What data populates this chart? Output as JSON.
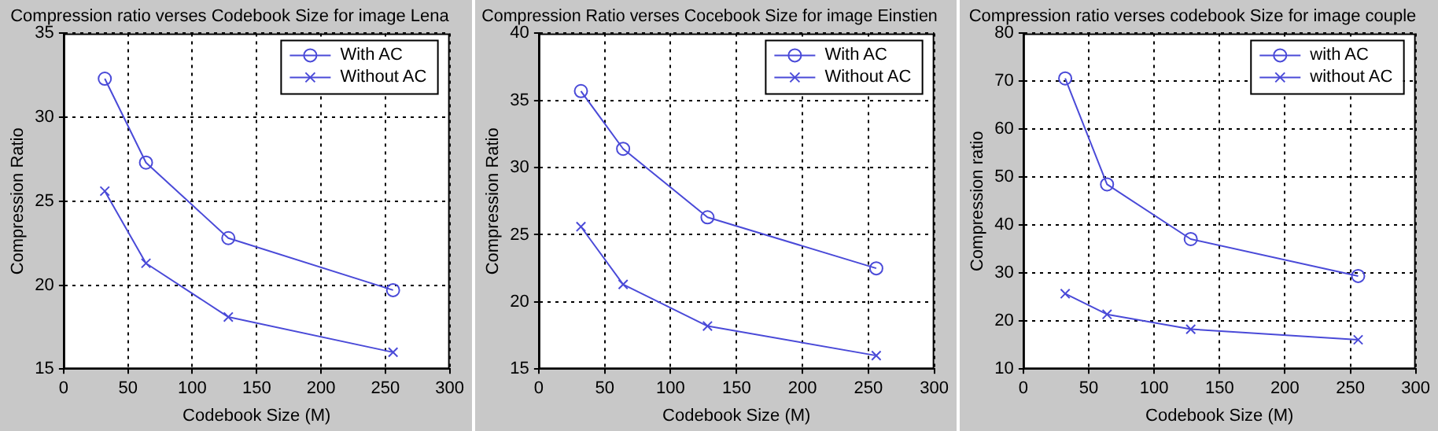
{
  "chart_data": [
    {
      "type": "line",
      "title": "Compression ratio verses Codebook Size for image Lena",
      "xlabel": "Codebook Size (M)",
      "ylabel": "Compression Ratio",
      "x": [
        32,
        64,
        128,
        256
      ],
      "xlim": [
        0,
        300
      ],
      "xticks": [
        0,
        50,
        100,
        150,
        200,
        250,
        300
      ],
      "ylim": [
        15,
        35
      ],
      "yticks": [
        15,
        20,
        25,
        30,
        35
      ],
      "grid": true,
      "legend": "top right",
      "line_style": "solid",
      "series": [
        {
          "name": "With AC",
          "color": "#4a4ad8",
          "marker": "circle",
          "values": [
            32.3,
            27.3,
            22.8,
            19.7
          ]
        },
        {
          "name": "Without AC",
          "color": "#4a4ad8",
          "marker": "cross",
          "values": [
            25.6,
            21.3,
            18.1,
            16.0
          ]
        }
      ]
    },
    {
      "type": "line",
      "title": "Compression Ratio verses Cocebook Size for image Einstien",
      "xlabel": "Codebook Size (M)",
      "ylabel": "Compression Ratio",
      "x": [
        32,
        64,
        128,
        256
      ],
      "xlim": [
        0,
        300
      ],
      "xticks": [
        0,
        50,
        100,
        150,
        200,
        250,
        300
      ],
      "ylim": [
        15,
        40
      ],
      "yticks": [
        15,
        20,
        25,
        30,
        35,
        40
      ],
      "grid": true,
      "legend": "top right",
      "line_style": "solid",
      "series": [
        {
          "name": "With AC",
          "color": "#4a4ad8",
          "marker": "circle",
          "values": [
            35.7,
            31.4,
            26.3,
            22.5
          ]
        },
        {
          "name": "Without AC",
          "color": "#4a4ad8",
          "marker": "cross",
          "values": [
            25.6,
            21.3,
            18.2,
            16.0
          ]
        }
      ]
    },
    {
      "type": "line",
      "title": "Compression ratio verses codebook Size for image couple",
      "xlabel": "Codebook Size (M)",
      "ylabel": "Compression ratio",
      "x": [
        32,
        64,
        128,
        256
      ],
      "xlim": [
        0,
        300
      ],
      "xticks": [
        0,
        50,
        100,
        150,
        200,
        250,
        300
      ],
      "ylim": [
        10,
        80
      ],
      "yticks": [
        10,
        20,
        30,
        40,
        50,
        60,
        70,
        80
      ],
      "grid": true,
      "legend": "top right",
      "line_style": "solid",
      "series": [
        {
          "name": "with AC",
          "color": "#4a4ad8",
          "marker": "circle",
          "values": [
            70.6,
            48.5,
            37.1,
            29.4
          ]
        },
        {
          "name": "without AC",
          "color": "#4a4ad8",
          "marker": "cross",
          "values": [
            25.7,
            21.4,
            18.3,
            16.1
          ]
        }
      ]
    }
  ]
}
